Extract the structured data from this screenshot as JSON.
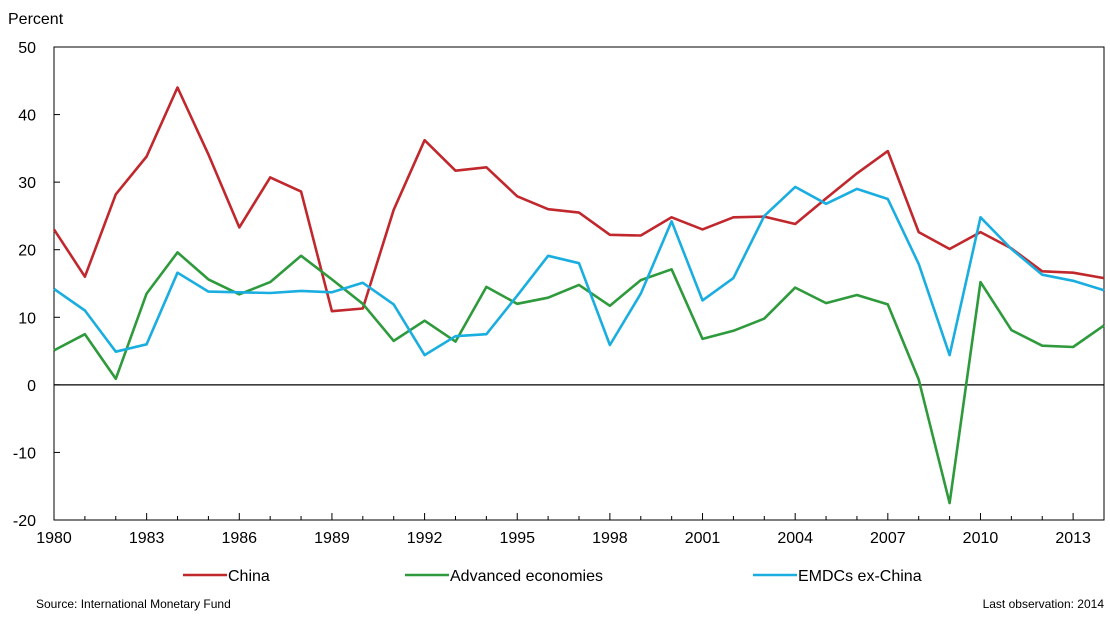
{
  "chart_data": {
    "type": "line",
    "ylabel": "Percent",
    "ylim": [
      -20,
      50
    ],
    "yticks": [
      -20,
      -10,
      0,
      10,
      20,
      30,
      40,
      50
    ],
    "xlim": [
      1980,
      2014
    ],
    "xticks": [
      1980,
      1983,
      1986,
      1989,
      1992,
      1995,
      1998,
      2001,
      2004,
      2007,
      2010,
      2013
    ],
    "x": [
      1980,
      1981,
      1982,
      1983,
      1984,
      1985,
      1986,
      1987,
      1988,
      1989,
      1990,
      1991,
      1992,
      1993,
      1994,
      1995,
      1996,
      1997,
      1998,
      1999,
      2000,
      2001,
      2002,
      2003,
      2004,
      2005,
      2006,
      2007,
      2008,
      2009,
      2010,
      2011,
      2012,
      2013,
      2014
    ],
    "grid": false,
    "legend_position": "bottom",
    "series": [
      {
        "name": "China",
        "color": "#c0282d",
        "values": [
          23.0,
          16.0,
          28.2,
          33.8,
          44.0,
          34.1,
          23.3,
          30.7,
          28.6,
          10.9,
          11.3,
          25.9,
          36.2,
          31.7,
          32.2,
          27.9,
          26.0,
          25.5,
          22.2,
          22.1,
          24.8,
          23.0,
          24.8,
          24.9,
          23.8,
          27.6,
          31.3,
          34.6,
          22.6,
          20.1,
          22.6,
          20.2,
          16.8,
          16.6,
          15.8
        ]
      },
      {
        "name": "Advanced economies",
        "color": "#2e9a3c",
        "values": [
          5.1,
          7.5,
          0.9,
          13.5,
          19.6,
          15.6,
          13.4,
          15.2,
          19.1,
          15.6,
          12.0,
          6.5,
          9.5,
          6.4,
          14.5,
          12.0,
          12.9,
          14.8,
          11.7,
          15.5,
          17.1,
          6.8,
          8.0,
          9.8,
          14.4,
          12.1,
          13.3,
          11.9,
          0.8,
          -17.5,
          15.2,
          8.1,
          5.8,
          5.6,
          8.8
        ]
      },
      {
        "name": "EMDCs ex-China",
        "color": "#1aaee0",
        "values": [
          14.2,
          11.0,
          4.9,
          6.0,
          16.6,
          13.8,
          13.7,
          13.6,
          13.9,
          13.7,
          15.1,
          11.9,
          4.4,
          7.2,
          7.5,
          13.2,
          19.1,
          18.0,
          5.9,
          13.5,
          24.2,
          12.5,
          15.8,
          25.0,
          29.3,
          26.8,
          29.0,
          27.5,
          17.9,
          4.4,
          24.8,
          20.1,
          16.3,
          15.4,
          14.0
        ]
      }
    ]
  },
  "footer": {
    "source": "Source: International Monetary Fund",
    "last_observation": "Last observation: 2014"
  }
}
